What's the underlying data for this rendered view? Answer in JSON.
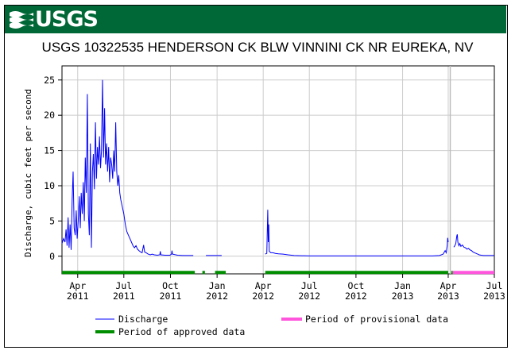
{
  "header": {
    "logo_text": "USGS",
    "logo_icon": "usgs-wave-icon",
    "title": "USGS 10322535 HENDERSON CK BLW VINNINI CK NR EUREKA, NV",
    "banner_color": "#006837"
  },
  "chart_data": {
    "type": "line",
    "title": "USGS 10322535 HENDERSON CK BLW VINNINI CK NR EUREKA, NV",
    "xlabel": "",
    "ylabel": "Discharge, cubic feet per second",
    "ylim": [
      -2.5,
      27
    ],
    "yticks": [
      0,
      5,
      10,
      15,
      20,
      25
    ],
    "grid": true,
    "xticks": [
      {
        "top": "Apr",
        "bottom": "2011",
        "date": "2011-04-01"
      },
      {
        "top": "Jul",
        "bottom": "2011",
        "date": "2011-07-01"
      },
      {
        "top": "Oct",
        "bottom": "2011",
        "date": "2011-10-01"
      },
      {
        "top": "Jan",
        "bottom": "2012",
        "date": "2012-01-01"
      },
      {
        "top": "Apr",
        "bottom": "2012",
        "date": "2012-04-01"
      },
      {
        "top": "Jul",
        "bottom": "2012",
        "date": "2012-07-01"
      },
      {
        "top": "Oct",
        "bottom": "2012",
        "date": "2012-10-01"
      },
      {
        "top": "Jan",
        "bottom": "2013",
        "date": "2013-01-01"
      },
      {
        "top": "Apr",
        "bottom": "2013",
        "date": "2013-04-01"
      },
      {
        "top": "Jul",
        "bottom": "2013",
        "date": "2013-07-01"
      }
    ],
    "xlim": [
      "2011-03-01",
      "2013-07-01"
    ],
    "series": [
      {
        "name": "Discharge",
        "color": "#0000ff",
        "segments": [
          [
            [
              "2011-03-01",
              1.8
            ],
            [
              "2011-03-04",
              2.5
            ],
            [
              "2011-03-07",
              2.0
            ],
            [
              "2011-03-09",
              3.8
            ],
            [
              "2011-03-11",
              1.5
            ],
            [
              "2011-03-13",
              5.5
            ],
            [
              "2011-03-15",
              1.2
            ],
            [
              "2011-03-17",
              4.5
            ],
            [
              "2011-03-19",
              0.9
            ],
            [
              "2011-03-21",
              8.0
            ],
            [
              "2011-03-23",
              12.0
            ],
            [
              "2011-03-25",
              4.0
            ],
            [
              "2011-03-27",
              3.0
            ],
            [
              "2011-03-29",
              6.5
            ],
            [
              "2011-03-31",
              2.5
            ],
            [
              "2011-04-02",
              5.0
            ],
            [
              "2011-04-04",
              8.5
            ],
            [
              "2011-04-06",
              4.0
            ],
            [
              "2011-04-08",
              9.0
            ],
            [
              "2011-04-10",
              6.0
            ],
            [
              "2011-04-12",
              10.5
            ],
            [
              "2011-04-14",
              5.0
            ],
            [
              "2011-04-16",
              14.0
            ],
            [
              "2011-04-18",
              9.0
            ],
            [
              "2011-04-20",
              23.0
            ],
            [
              "2011-04-22",
              6.0
            ],
            [
              "2011-04-24",
              3.0
            ],
            [
              "2011-04-26",
              16.0
            ],
            [
              "2011-04-28",
              1.2
            ],
            [
              "2011-04-30",
              12.0
            ],
            [
              "2011-05-02",
              14.5
            ],
            [
              "2011-05-04",
              9.5
            ],
            [
              "2011-05-06",
              19.0
            ],
            [
              "2011-05-08",
              11.0
            ],
            [
              "2011-05-10",
              15.5
            ],
            [
              "2011-05-12",
              13.0
            ],
            [
              "2011-05-14",
              17.0
            ],
            [
              "2011-05-16",
              12.5
            ],
            [
              "2011-05-18",
              15.0
            ],
            [
              "2011-05-20",
              25.0
            ],
            [
              "2011-05-22",
              14.0
            ],
            [
              "2011-05-24",
              21.0
            ],
            [
              "2011-05-26",
              13.0
            ],
            [
              "2011-05-28",
              16.0
            ],
            [
              "2011-05-30",
              12.0
            ],
            [
              "2011-06-01",
              15.5
            ],
            [
              "2011-06-03",
              10.5
            ],
            [
              "2011-06-05",
              14.0
            ],
            [
              "2011-06-07",
              13.0
            ],
            [
              "2011-06-09",
              11.0
            ],
            [
              "2011-06-11",
              15.0
            ],
            [
              "2011-06-13",
              12.0
            ],
            [
              "2011-06-15",
              19.0
            ],
            [
              "2011-06-17",
              12.0
            ],
            [
              "2011-06-19",
              10.0
            ],
            [
              "2011-06-21",
              11.5
            ],
            [
              "2011-06-23",
              9.0
            ],
            [
              "2011-06-25",
              8.0
            ],
            [
              "2011-06-28",
              7.0
            ],
            [
              "2011-07-01",
              6.0
            ],
            [
              "2011-07-04",
              4.5
            ],
            [
              "2011-07-07",
              3.5
            ],
            [
              "2011-07-10",
              3.0
            ],
            [
              "2011-07-13",
              2.5
            ],
            [
              "2011-07-16",
              2.0
            ],
            [
              "2011-07-19",
              1.5
            ],
            [
              "2011-07-22",
              1.2
            ],
            [
              "2011-07-25",
              1.5
            ],
            [
              "2011-07-28",
              1.0
            ],
            [
              "2011-07-31",
              0.8
            ],
            [
              "2011-08-03",
              0.6
            ],
            [
              "2011-08-06",
              0.5
            ],
            [
              "2011-08-09",
              1.6
            ],
            [
              "2011-08-11",
              0.6
            ],
            [
              "2011-08-14",
              0.5
            ],
            [
              "2011-08-18",
              0.3
            ],
            [
              "2011-08-22",
              0.2
            ],
            [
              "2011-08-26",
              0.3
            ],
            [
              "2011-08-30",
              0.2
            ],
            [
              "2011-09-05",
              0.15
            ],
            [
              "2011-09-10",
              0.2
            ],
            [
              "2011-09-11",
              0.7
            ],
            [
              "2011-09-12",
              0.2
            ],
            [
              "2011-09-20",
              0.15
            ],
            [
              "2011-09-30",
              0.15
            ],
            [
              "2011-10-03",
              0.3
            ],
            [
              "2011-10-04",
              0.8
            ],
            [
              "2011-10-05",
              0.3
            ],
            [
              "2011-10-15",
              0.15
            ],
            [
              "2011-10-25",
              0.1
            ],
            [
              "2011-11-05",
              0.1
            ],
            [
              "2011-11-15",
              0.1
            ]
          ],
          [
            [
              "2011-12-10",
              0.1
            ],
            [
              "2011-12-25",
              0.1
            ],
            [
              "2012-01-10",
              0.1
            ]
          ],
          [
            [
              "2012-04-05",
              0.3
            ],
            [
              "2012-04-08",
              0.4
            ],
            [
              "2012-04-10",
              6.6
            ],
            [
              "2012-04-11",
              2.0
            ],
            [
              "2012-04-12",
              4.5
            ],
            [
              "2012-04-13",
              0.7
            ],
            [
              "2012-04-16",
              0.5
            ],
            [
              "2012-04-20",
              0.5
            ],
            [
              "2012-04-25",
              0.4
            ],
            [
              "2012-05-01",
              0.35
            ],
            [
              "2012-05-10",
              0.3
            ],
            [
              "2012-05-20",
              0.2
            ],
            [
              "2012-06-01",
              0.1
            ],
            [
              "2012-07-01",
              0.05
            ],
            [
              "2012-08-01",
              0.05
            ],
            [
              "2012-09-01",
              0.05
            ],
            [
              "2012-10-01",
              0.05
            ],
            [
              "2012-11-01",
              0.05
            ],
            [
              "2012-12-01",
              0.05
            ],
            [
              "2013-01-01",
              0.05
            ],
            [
              "2013-02-01",
              0.05
            ],
            [
              "2013-03-01",
              0.05
            ],
            [
              "2013-03-15",
              0.1
            ],
            [
              "2013-03-22",
              0.3
            ],
            [
              "2013-03-26",
              0.8
            ],
            [
              "2013-03-28",
              0.5
            ],
            [
              "2013-03-30",
              1.5
            ],
            [
              "2013-03-31",
              2.6
            ],
            [
              "2013-04-01",
              2.0
            ]
          ],
          [
            [
              "2013-04-12",
              1.3
            ],
            [
              "2013-04-14",
              1.5
            ],
            [
              "2013-04-16",
              1.8
            ],
            [
              "2013-04-18",
              2.9
            ],
            [
              "2013-04-19",
              3.1
            ],
            [
              "2013-04-20",
              2.0
            ],
            [
              "2013-04-22",
              1.5
            ],
            [
              "2013-04-24",
              1.8
            ],
            [
              "2013-04-26",
              1.4
            ],
            [
              "2013-04-29",
              1.6
            ],
            [
              "2013-05-02",
              1.3
            ],
            [
              "2013-05-05",
              1.2
            ],
            [
              "2013-05-08",
              1.0
            ],
            [
              "2013-05-11",
              1.1
            ],
            [
              "2013-05-14",
              0.9
            ],
            [
              "2013-05-17",
              0.8
            ],
            [
              "2013-05-20",
              0.6
            ],
            [
              "2013-05-23",
              0.5
            ],
            [
              "2013-05-26",
              0.4
            ],
            [
              "2013-05-29",
              0.3
            ],
            [
              "2013-06-01",
              0.2
            ],
            [
              "2013-06-05",
              0.15
            ],
            [
              "2013-06-10",
              0.1
            ],
            [
              "2013-06-20",
              0.1
            ],
            [
              "2013-07-01",
              0.1
            ]
          ]
        ]
      }
    ],
    "periods": [
      {
        "name": "Period of approved data",
        "color": "#008e00",
        "ranges": [
          [
            "2011-03-01",
            "2011-11-18"
          ],
          [
            "2011-12-03",
            "2011-12-08"
          ],
          [
            "2011-12-28",
            "2012-01-18"
          ],
          [
            "2012-04-05",
            "2013-04-01"
          ],
          [
            "2013-04-07",
            "2013-04-10"
          ]
        ]
      },
      {
        "name": "Period of provisional data",
        "color": "#ff55dd",
        "ranges": [
          [
            "2013-04-10",
            "2013-07-01"
          ]
        ]
      }
    ],
    "legend_position": "bottom"
  },
  "legend": {
    "discharge": "Discharge",
    "provisional": "Period of provisional data",
    "approved": "Period of approved data"
  }
}
